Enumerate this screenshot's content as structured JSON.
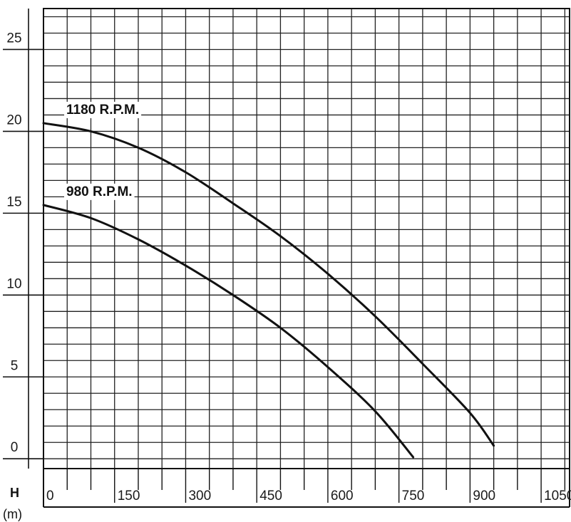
{
  "chart_data": {
    "type": "line",
    "title": "",
    "xlabel": "",
    "ylabel": "H",
    "ylabel_unit": "(m)",
    "xlim": [
      0,
      1110
    ],
    "ylim": [
      -0.6,
      27.5
    ],
    "x_ticks": [
      0,
      150,
      300,
      450,
      600,
      750,
      900,
      1050
    ],
    "x_tick_labels": [
      "0",
      "150",
      "300",
      "450",
      "600",
      "750",
      "900",
      "1050"
    ],
    "y_ticks": [
      0,
      5,
      10,
      15,
      20,
      25
    ],
    "y_tick_labels": [
      "0",
      "5",
      "10",
      "15",
      "20",
      "25"
    ],
    "grid": true,
    "series": [
      {
        "name": "1180 R.P.M.",
        "color": "#111111",
        "x": [
          0,
          100,
          200,
          300,
          400,
          500,
          600,
          700,
          800,
          900,
          950
        ],
        "y": [
          20.5,
          20.0,
          19.0,
          17.5,
          15.6,
          13.6,
          11.3,
          8.7,
          5.8,
          2.8,
          0.8
        ]
      },
      {
        "name": "980 R.P.M.",
        "color": "#111111",
        "x": [
          0,
          100,
          200,
          300,
          400,
          500,
          600,
          700,
          780
        ],
        "y": [
          15.5,
          14.7,
          13.4,
          11.8,
          10.0,
          8.0,
          5.6,
          2.9,
          0.1
        ]
      }
    ]
  }
}
